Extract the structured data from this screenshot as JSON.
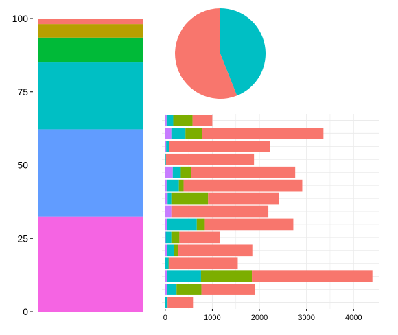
{
  "palette": {
    "salmon": "#F8766D",
    "olive": "#B79F00",
    "green": "#00BA38",
    "teal": "#00BFC4",
    "blue": "#619CFF",
    "magenta": "#F564E3",
    "lime": "#7CAE00",
    "purple": "#C77CFF",
    "grid": "#EBEBEB",
    "axis_text": "#000000",
    "panel_bg": "#FFFFFF"
  },
  "chart_data": [
    {
      "type": "bar",
      "stacked": true,
      "orientation": "vertical",
      "ylim": [
        0,
        100
      ],
      "y_ticks": [
        0,
        25,
        50,
        75,
        100
      ],
      "grid": false,
      "legend": "none",
      "segments": [
        {
          "value": 32.4,
          "color": "#F564E3"
        },
        {
          "value": 29.8,
          "color": "#619CFF"
        },
        {
          "value": 22.8,
          "color": "#00BFC4"
        },
        {
          "value": 8.5,
          "color": "#00BA38"
        },
        {
          "value": 4.6,
          "color": "#B79F00"
        },
        {
          "value": 1.9,
          "color": "#F8766D"
        }
      ]
    },
    {
      "type": "pie",
      "legend": "none",
      "slices": [
        {
          "value": 44,
          "color": "#00BFC4"
        },
        {
          "value": 56,
          "color": "#F8766D"
        }
      ]
    },
    {
      "type": "bar",
      "stacked": true,
      "orientation": "horizontal",
      "xlim": [
        -70,
        4550
      ],
      "x_ticks": [
        0,
        1000,
        2000,
        3000,
        4000
      ],
      "grid": true,
      "legend": "none",
      "series_colors": [
        "#C77CFF",
        "#00BFC4",
        "#7CAE00",
        "#F8766D"
      ],
      "rows": [
        [
          30,
          140,
          410,
          420
        ],
        [
          130,
          300,
          350,
          2580
        ],
        [
          20,
          70,
          0,
          2130
        ],
        [
          0,
          15,
          0,
          1870
        ],
        [
          160,
          170,
          220,
          2210
        ],
        [
          30,
          260,
          100,
          2520
        ],
        [
          50,
          80,
          780,
          1510
        ],
        [
          130,
          0,
          0,
          2060
        ],
        [
          40,
          630,
          170,
          1880
        ],
        [
          10,
          120,
          170,
          860
        ],
        [
          40,
          140,
          100,
          1570
        ],
        [
          0,
          70,
          20,
          1450
        ],
        [
          40,
          720,
          1080,
          2560
        ],
        [
          40,
          200,
          530,
          1130
        ],
        [
          0,
          50,
          0,
          540
        ]
      ]
    }
  ]
}
